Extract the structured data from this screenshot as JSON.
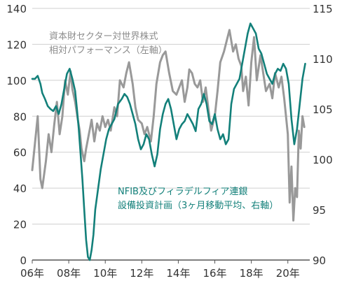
{
  "chart_data": {
    "type": "line",
    "title": "",
    "x_ticks": [
      "06年",
      "08年",
      "10年",
      "12年",
      "14年",
      "16年",
      "18年",
      "20年"
    ],
    "x_tick_values": [
      2006,
      2008,
      2010,
      2012,
      2014,
      2016,
      2018,
      2020
    ],
    "xlim": [
      2006,
      2021.2
    ],
    "y_left": {
      "ticks": [
        "0",
        "20",
        "40",
        "60",
        "80",
        "100",
        "120",
        "140"
      ],
      "ylim": [
        0,
        140
      ]
    },
    "y_right": {
      "ticks": [
        "90",
        "95",
        "100",
        "105",
        "110",
        "115"
      ],
      "ylim": [
        90,
        115
      ]
    },
    "grid": true,
    "series": [
      {
        "name": "資本財セクター対世界株式相対パフォーマンス（左軸）",
        "label_lines": [
          "資本財セクター対世界株式",
          "相対パフォーマンス（左軸）"
        ],
        "axis": "left",
        "color": "#999999",
        "x": [
          2006.0,
          2006.15,
          2006.3,
          2006.45,
          2006.55,
          2006.75,
          2006.9,
          2007.05,
          2007.2,
          2007.35,
          2007.5,
          2007.65,
          2007.8,
          2007.95,
          2008.1,
          2008.2,
          2008.35,
          2008.5,
          2008.6,
          2008.7,
          2008.85,
          2008.95,
          2009.1,
          2009.25,
          2009.4,
          2009.55,
          2009.7,
          2009.85,
          2010.0,
          2010.15,
          2010.3,
          2010.5,
          2010.65,
          2010.8,
          2011.0,
          2011.15,
          2011.3,
          2011.5,
          2011.65,
          2011.8,
          2012.0,
          2012.15,
          2012.3,
          2012.5,
          2012.65,
          2012.8,
          2013.0,
          2013.15,
          2013.3,
          2013.5,
          2013.7,
          2013.9,
          2014.05,
          2014.2,
          2014.35,
          2014.5,
          2014.6,
          2014.75,
          2014.9,
          2015.05,
          2015.2,
          2015.35,
          2015.5,
          2015.65,
          2015.8,
          2016.0,
          2016.15,
          2016.3,
          2016.5,
          2016.65,
          2016.8,
          2017.0,
          2017.15,
          2017.3,
          2017.45,
          2017.55,
          2017.7,
          2017.85,
          2018.0,
          2018.15,
          2018.3,
          2018.5,
          2018.65,
          2018.8,
          2019.0,
          2019.15,
          2019.3,
          2019.5,
          2019.65,
          2019.8,
          2020.0,
          2020.1,
          2020.2,
          2020.3,
          2020.4,
          2020.5,
          2020.6,
          2020.7,
          2020.8,
          2020.9
        ],
        "values": [
          50,
          65,
          80,
          45,
          40,
          55,
          70,
          60,
          75,
          88,
          70,
          80,
          100,
          92,
          105,
          95,
          88,
          78,
          72,
          62,
          55,
          62,
          70,
          78,
          66,
          76,
          72,
          80,
          74,
          78,
          72,
          85,
          80,
          100,
          96,
          104,
          110,
          98,
          85,
          78,
          76,
          70,
          74,
          66,
          80,
          98,
          110,
          114,
          116,
          104,
          94,
          92,
          96,
          100,
          88,
          96,
          106,
          104,
          98,
          96,
          100,
          88,
          96,
          84,
          72,
          80,
          94,
          110,
          116,
          122,
          128,
          116,
          120,
          112,
          108,
          94,
          102,
          86,
          110,
          124,
          100,
          114,
          104,
          94,
          98,
          90,
          104,
          96,
          102,
          90,
          70,
          32,
          52,
          22,
          40,
          35,
          72,
          62,
          80,
          74
        ]
      },
      {
        "name": "NFIB及びフィラデルフィア連銀設備投資計画（3ヶ月移動平均、右軸）",
        "label_lines": [
          "NFIB及びフィラデルフィア連銀",
          "設備投資計画（3ヶ月移動平均、右軸）"
        ],
        "axis": "right",
        "color": "#13807a",
        "x": [
          2006.0,
          2006.15,
          2006.3,
          2006.45,
          2006.55,
          2006.7,
          2006.85,
          2007.0,
          2007.15,
          2007.3,
          2007.45,
          2007.6,
          2007.75,
          2007.9,
          2008.05,
          2008.2,
          2008.35,
          2008.45,
          2008.55,
          2008.65,
          2008.75,
          2008.85,
          2008.95,
          2009.05,
          2009.15,
          2009.25,
          2009.35,
          2009.45,
          2009.6,
          2009.75,
          2009.9,
          2010.05,
          2010.2,
          2010.35,
          2010.5,
          2010.7,
          2010.9,
          2011.05,
          2011.2,
          2011.35,
          2011.5,
          2011.65,
          2011.8,
          2011.95,
          2012.1,
          2012.25,
          2012.4,
          2012.55,
          2012.7,
          2012.85,
          2013.0,
          2013.15,
          2013.3,
          2013.45,
          2013.6,
          2013.75,
          2013.9,
          2014.05,
          2014.2,
          2014.35,
          2014.5,
          2014.65,
          2014.8,
          2014.95,
          2015.1,
          2015.25,
          2015.4,
          2015.55,
          2015.7,
          2015.85,
          2016.0,
          2016.15,
          2016.3,
          2016.45,
          2016.6,
          2016.75,
          2016.9,
          2017.05,
          2017.2,
          2017.35,
          2017.5,
          2017.65,
          2017.8,
          2017.95,
          2018.1,
          2018.25,
          2018.4,
          2018.55,
          2018.7,
          2018.85,
          2019.0,
          2019.15,
          2019.3,
          2019.45,
          2019.6,
          2019.75,
          2019.9,
          2020.05,
          2020.2,
          2020.35,
          2020.5,
          2020.65,
          2020.8,
          2020.95
        ],
        "values": [
          108.0,
          108.0,
          108.3,
          107.5,
          106.6,
          106.0,
          105.3,
          105.0,
          104.8,
          105.3,
          104.5,
          105.5,
          107.0,
          108.5,
          109.0,
          108.0,
          106.8,
          105.0,
          103.0,
          100.5,
          98.0,
          95.0,
          92.0,
          90.3,
          90.0,
          91.0,
          92.5,
          95.0,
          97.0,
          99.0,
          100.5,
          102.0,
          103.0,
          103.5,
          104.0,
          105.5,
          106.0,
          106.5,
          106.2,
          105.5,
          104.5,
          103.5,
          102.0,
          101.0,
          101.5,
          102.5,
          102.0,
          100.5,
          99.3,
          100.5,
          103.0,
          104.5,
          105.5,
          106.0,
          105.0,
          103.5,
          102.0,
          103.0,
          103.5,
          103.8,
          104.5,
          104.0,
          103.5,
          102.8,
          105.0,
          105.5,
          106.5,
          105.5,
          103.8,
          103.5,
          104.5,
          103.0,
          102.0,
          102.5,
          101.5,
          102.0,
          105.5,
          107.0,
          107.5,
          108.0,
          109.5,
          111.0,
          112.5,
          113.5,
          113.0,
          112.5,
          111.0,
          110.5,
          109.5,
          108.5,
          108.0,
          107.5,
          108.5,
          109.0,
          108.8,
          109.5,
          109.0,
          107.5,
          104.0,
          101.5,
          103.0,
          105.5,
          108.0,
          109.5
        ]
      }
    ]
  }
}
